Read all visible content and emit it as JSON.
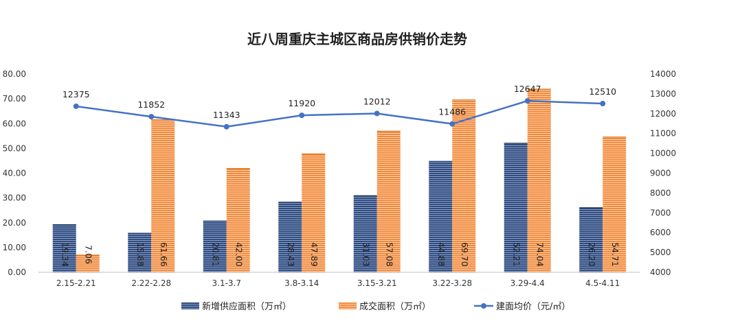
{
  "chart_data": {
    "type": "bar+line",
    "title": "近八周重庆主城区商品房供销价走势",
    "categories": [
      "2.15-2.21",
      "2.22-2.28",
      "3.1-3.7",
      "3.8-3.14",
      "3.15-3.21",
      "3.22-3.28",
      "3.29-4.4",
      "4.5-4.11"
    ],
    "series": [
      {
        "name": "新增供应面积（万㎡）",
        "kind": "bar",
        "axis": "left",
        "color": "#2e4a7d",
        "values": [
          19.34,
          15.88,
          20.81,
          28.43,
          31.03,
          44.88,
          52.21,
          26.2
        ],
        "labels": [
          "19.34",
          "15.88",
          "20.81",
          "28.43",
          "31.03",
          "44.88",
          "52.21",
          "26.20"
        ]
      },
      {
        "name": "成交面积（万㎡）",
        "kind": "bar",
        "axis": "left",
        "color": "#f28a3c",
        "values": [
          7.06,
          61.66,
          42.0,
          47.89,
          57.08,
          69.7,
          74.04,
          54.71
        ],
        "labels": [
          "7.06",
          "61.66",
          "42.00",
          "47.89",
          "57.08",
          "69.70",
          "74.04",
          "54.71"
        ]
      },
      {
        "name": "建面均价（元/㎡）",
        "kind": "line",
        "axis": "right",
        "color": "#4472c4",
        "values": [
          12375,
          11852,
          11343,
          11920,
          12012,
          11486,
          12647,
          12510
        ],
        "labels": [
          "12375",
          "11852",
          "11343",
          "11920",
          "12012",
          "11486",
          "12647",
          "12510"
        ]
      }
    ],
    "y_left": {
      "min": 0,
      "max": 80,
      "ticks": [
        "0.00",
        "10.00",
        "20.00",
        "30.00",
        "40.00",
        "50.00",
        "60.00",
        "70.00",
        "80.00"
      ]
    },
    "y_right": {
      "min": 4000,
      "max": 14000,
      "ticks": [
        "4000",
        "5000",
        "6000",
        "7000",
        "8000",
        "9000",
        "10000",
        "11000",
        "12000",
        "13000",
        "14000"
      ]
    },
    "legend_position": "bottom",
    "grid": false
  }
}
